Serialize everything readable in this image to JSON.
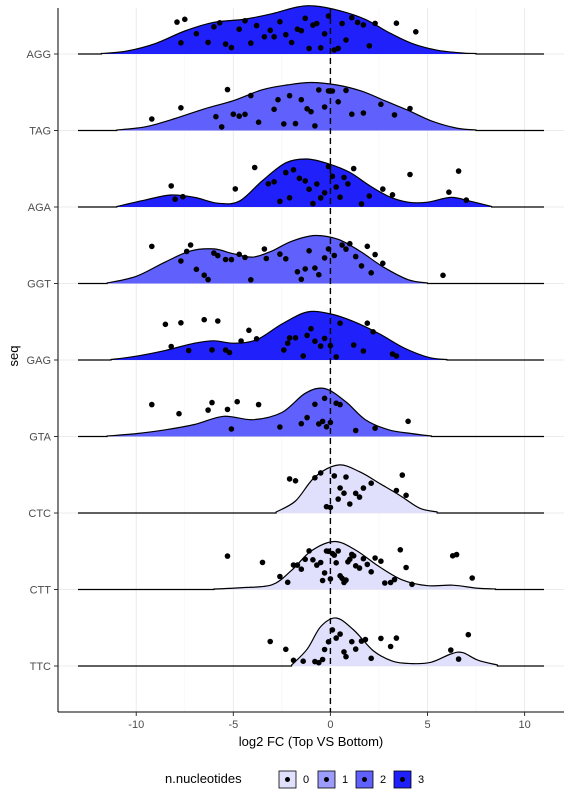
{
  "chart_data": {
    "type": "ridgeline",
    "xlabel": "log2 FC (Top VS Bottom)",
    "ylabel": "seq",
    "xlim": [
      -13,
      11
    ],
    "x_ticks": [
      -10,
      -5,
      0,
      5,
      10
    ],
    "x_tick_labels": [
      "-10",
      "-5",
      "0",
      "5",
      "10"
    ],
    "reference_line_x": 0,
    "grid": true,
    "legend": {
      "title": "n.nucleotides",
      "position": "bottom",
      "entries": [
        {
          "label": "0",
          "color": "#e0e0fc"
        },
        {
          "label": "1",
          "color": "#9c9cfc"
        },
        {
          "label": "2",
          "color": "#6060fc"
        },
        {
          "label": "3",
          "color": "#2020fa"
        }
      ]
    },
    "series": [
      {
        "seq": "TTC",
        "n_nucleotides": 0,
        "color": "#e0e0fc",
        "density": [
          [
            -2,
            0.02
          ],
          [
            -1.2,
            0.35
          ],
          [
            -0.5,
            0.82
          ],
          [
            0.3,
            1.0
          ],
          [
            1.2,
            0.75
          ],
          [
            2.2,
            0.32
          ],
          [
            3.2,
            0.1
          ],
          [
            4.2,
            0.05
          ],
          [
            5.2,
            0.08
          ],
          [
            6.2,
            0.25
          ],
          [
            6.8,
            0.28
          ],
          [
            7.6,
            0.12
          ],
          [
            8.6,
            0.02
          ]
        ],
        "points": [
          -3.1,
          -2.3,
          -1.9,
          -1.4,
          -0.8,
          -0.6,
          -0.4,
          -0.3,
          -0.1,
          0.1,
          0.3,
          0.5,
          0.7,
          0.8,
          1.1,
          1.3,
          1.6,
          1.8,
          2.1,
          2.6,
          3.1,
          3.4,
          6.2,
          6.6,
          7.1
        ]
      },
      {
        "seq": "CTT",
        "n_nucleotides": 0,
        "color": "#e0e0fc",
        "density": [
          [
            -6,
            0.01
          ],
          [
            -4.5,
            0.04
          ],
          [
            -3,
            0.1
          ],
          [
            -2,
            0.4
          ],
          [
            -1,
            0.8
          ],
          [
            0.2,
            1.0
          ],
          [
            1.3,
            0.82
          ],
          [
            2.5,
            0.48
          ],
          [
            3.7,
            0.2
          ],
          [
            5,
            0.08
          ],
          [
            6.3,
            0.09
          ],
          [
            7.5,
            0.03
          ],
          [
            8.5,
            0.01
          ]
        ],
        "points": [
          -5.3,
          -3.5,
          -2.6,
          -2.2,
          -1.9,
          -1.7,
          -1.5,
          -1.3,
          -1.1,
          -0.9,
          -0.7,
          -0.5,
          -0.4,
          -0.3,
          -0.2,
          -0.1,
          0,
          0.1,
          0.2,
          0.3,
          0.4,
          0.5,
          0.6,
          0.7,
          0.8,
          0.9,
          1,
          1.1,
          1.2,
          1.3,
          1.5,
          1.7,
          1.9,
          2.1,
          2.3,
          2.6,
          2.8,
          3.1,
          3.3,
          3.6,
          3.9,
          4.2,
          6.3,
          6.5,
          7.3
        ]
      },
      {
        "seq": "CTC",
        "n_nucleotides": 0,
        "color": "#e0e0fc",
        "density": [
          [
            -2.8,
            0.02
          ],
          [
            -1.8,
            0.25
          ],
          [
            -0.8,
            0.75
          ],
          [
            0.4,
            1.0
          ],
          [
            1.5,
            0.86
          ],
          [
            2.6,
            0.6
          ],
          [
            3.6,
            0.36
          ],
          [
            4.6,
            0.1
          ],
          [
            5.5,
            0.02
          ]
        ],
        "points": [
          -2.1,
          -1.8,
          -0.8,
          -0.5,
          -0.2,
          0,
          0.2,
          0.4,
          0.5,
          0.7,
          0.8,
          1,
          1.3,
          1.5,
          1.7,
          2.1,
          3.4,
          3.7,
          3.9
        ]
      },
      {
        "seq": "GTA",
        "n_nucleotides": 2,
        "color": "#6060fc",
        "density": [
          [
            -11.5,
            0.01
          ],
          [
            -10,
            0.06
          ],
          [
            -8.5,
            0.14
          ],
          [
            -7,
            0.25
          ],
          [
            -5.5,
            0.42
          ],
          [
            -4,
            0.35
          ],
          [
            -2.5,
            0.5
          ],
          [
            -1.3,
            0.9
          ],
          [
            -0.3,
            1.0
          ],
          [
            0.8,
            0.72
          ],
          [
            1.8,
            0.35
          ],
          [
            3,
            0.14
          ],
          [
            4.2,
            0.06
          ],
          [
            5.2,
            0.01
          ]
        ],
        "points": [
          -9.2,
          -7.8,
          -6.3,
          -6.1,
          -5.3,
          -5.1,
          -4.8,
          -3.7,
          -2.6,
          -1.5,
          -1.2,
          -0.8,
          -0.6,
          -0.4,
          -0.3,
          -0.2,
          0,
          0.3,
          0.5,
          1.3,
          2.3,
          4.0
        ]
      },
      {
        "seq": "GAG",
        "n_nucleotides": 3,
        "color": "#2020fa",
        "density": [
          [
            -11.3,
            0.01
          ],
          [
            -10,
            0.08
          ],
          [
            -8.5,
            0.2
          ],
          [
            -7,
            0.35
          ],
          [
            -6,
            0.4
          ],
          [
            -5,
            0.35
          ],
          [
            -3.8,
            0.42
          ],
          [
            -2.5,
            0.75
          ],
          [
            -1.2,
            1.0
          ],
          [
            0,
            0.96
          ],
          [
            1.2,
            0.8
          ],
          [
            2.5,
            0.55
          ],
          [
            3.8,
            0.25
          ],
          [
            5.1,
            0.05
          ],
          [
            6,
            0.01
          ]
        ],
        "points": [
          -8.5,
          -8.2,
          -7.7,
          -7.3,
          -6.5,
          -6.1,
          -5.8,
          -5.4,
          -5.2,
          -4.6,
          -4.2,
          -3.8,
          -2.4,
          -2.2,
          -2.1,
          -1.8,
          -1.4,
          -1.2,
          -1,
          -0.8,
          -0.5,
          -0.3,
          0,
          0.3,
          0.5,
          1.2,
          1.7,
          1.9,
          2.2,
          3.2,
          3.4
        ]
      },
      {
        "seq": "GGT",
        "n_nucleotides": 2,
        "color": "#6060fc",
        "density": [
          [
            -11.5,
            0.01
          ],
          [
            -10,
            0.15
          ],
          [
            -8.5,
            0.45
          ],
          [
            -7.2,
            0.68
          ],
          [
            -6,
            0.72
          ],
          [
            -5,
            0.62
          ],
          [
            -4,
            0.55
          ],
          [
            -3,
            0.68
          ],
          [
            -2,
            0.88
          ],
          [
            -0.8,
            1.0
          ],
          [
            0.4,
            0.92
          ],
          [
            1.5,
            0.68
          ],
          [
            2.7,
            0.35
          ],
          [
            4,
            0.08
          ],
          [
            5,
            0.01
          ]
        ],
        "points": [
          -9.2,
          -7.7,
          -7.4,
          -7.2,
          -6.9,
          -6.5,
          -6.3,
          -6.0,
          -5.8,
          -5.4,
          -5.1,
          -4.7,
          -4.4,
          -4.1,
          -3.4,
          -3.3,
          -2.6,
          -2.3,
          -1.7,
          -1.5,
          -1.3,
          -1.1,
          -0.8,
          -0.6,
          -0.3,
          -0.1,
          0.2,
          0.6,
          0.8,
          1.0,
          1.3,
          1.6,
          1.9,
          2.1,
          2.3,
          2.7,
          5.8
        ]
      },
      {
        "seq": "AGA",
        "n_nucleotides": 3,
        "color": "#2020fa",
        "density": [
          [
            -11,
            0.01
          ],
          [
            -9.5,
            0.15
          ],
          [
            -8.2,
            0.25
          ],
          [
            -7,
            0.2
          ],
          [
            -5.8,
            0.08
          ],
          [
            -4.7,
            0.12
          ],
          [
            -3.5,
            0.55
          ],
          [
            -2.3,
            0.92
          ],
          [
            -1.2,
            1.0
          ],
          [
            -0.1,
            0.9
          ],
          [
            1,
            0.72
          ],
          [
            2,
            0.45
          ],
          [
            3,
            0.22
          ],
          [
            4,
            0.1
          ],
          [
            5,
            0.1
          ],
          [
            6.2,
            0.2
          ],
          [
            7.2,
            0.12
          ],
          [
            8.3,
            0.01
          ]
        ],
        "points": [
          -8.2,
          -8,
          -7.6,
          -4.9,
          -3.9,
          -3.2,
          -2.9,
          -2.6,
          -2.3,
          -2.1,
          -1.9,
          -1.6,
          -1.3,
          -1.1,
          -0.9,
          -0.7,
          -0.5,
          -0.3,
          -0.1,
          0.1,
          0.3,
          0.5,
          0.7,
          0.9,
          1.2,
          1.6,
          2.0,
          2.7,
          3.2,
          4.1,
          6.1,
          6.6,
          7.0
        ]
      },
      {
        "seq": "TAG",
        "n_nucleotides": 2,
        "color": "#6060fc",
        "density": [
          [
            -11,
            0.01
          ],
          [
            -9.5,
            0.08
          ],
          [
            -8,
            0.25
          ],
          [
            -6.5,
            0.45
          ],
          [
            -5,
            0.62
          ],
          [
            -3.5,
            0.85
          ],
          [
            -2.2,
            0.95
          ],
          [
            -1,
            1.0
          ],
          [
            0.3,
            0.95
          ],
          [
            1.6,
            0.82
          ],
          [
            2.8,
            0.62
          ],
          [
            4,
            0.42
          ],
          [
            5.2,
            0.2
          ],
          [
            6.5,
            0.05
          ],
          [
            7.5,
            0.01
          ]
        ],
        "points": [
          -9.2,
          -7.7,
          -5.9,
          -5.6,
          -5.3,
          -5.0,
          -4.7,
          -4.4,
          -4.1,
          -3.7,
          -2.9,
          -2.7,
          -2.4,
          -2.1,
          -1.8,
          -1.5,
          -1.2,
          -1,
          -0.8,
          -0.6,
          -0.3,
          -0.1,
          0.1,
          0.4,
          0.8,
          1.1,
          1.7,
          2.6,
          3.3,
          4.1
        ]
      },
      {
        "seq": "AGG",
        "n_nucleotides": 3,
        "color": "#2020fa",
        "density": [
          [
            -11.8,
            0.01
          ],
          [
            -10.5,
            0.06
          ],
          [
            -9,
            0.22
          ],
          [
            -7.5,
            0.48
          ],
          [
            -6,
            0.66
          ],
          [
            -4.5,
            0.72
          ],
          [
            -3,
            0.84
          ],
          [
            -1.7,
            0.98
          ],
          [
            -0.8,
            1.0
          ],
          [
            0.5,
            0.9
          ],
          [
            1.8,
            0.72
          ],
          [
            3,
            0.45
          ],
          [
            4.2,
            0.22
          ],
          [
            5.5,
            0.08
          ],
          [
            6.8,
            0.02
          ],
          [
            7.5,
            0.01
          ]
        ],
        "points": [
          -7.9,
          -7.7,
          -7.5,
          -6.9,
          -6.3,
          -6.0,
          -5.7,
          -5.4,
          -5.1,
          -4.7,
          -4.4,
          -4.1,
          -3.8,
          -3.4,
          -3.1,
          -2.9,
          -2.6,
          -2.3,
          -2.0,
          -1.7,
          -1.5,
          -1.3,
          -1.1,
          -0.9,
          -0.7,
          -0.5,
          -0.3,
          -0.1,
          0.2,
          0.4,
          0.6,
          0.8,
          1.1,
          1.4,
          1.7,
          2.0,
          2.3,
          3.4,
          4.4
        ]
      }
    ]
  }
}
